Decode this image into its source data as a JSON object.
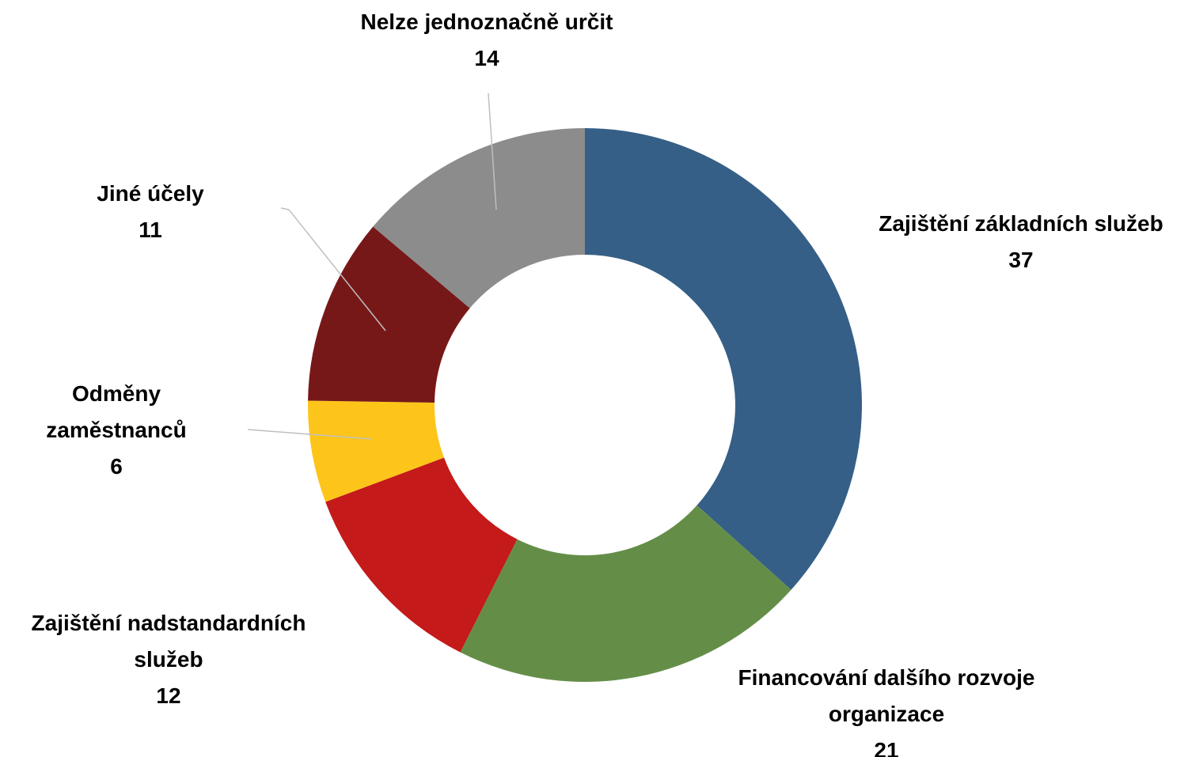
{
  "chart_data": {
    "type": "donut",
    "categories": [
      "Zajištění základních služeb",
      "Financování dalšího rozvoje organizace",
      "Zajištění nadstandardních služeb",
      "Odměny zaměstnanců",
      "Jiné účely",
      "Nelze jednoznačně určit"
    ],
    "values": [
      37,
      21,
      12,
      6,
      11,
      14
    ],
    "colors": [
      "#355f87",
      "#648e48",
      "#c41a1a",
      "#fdc51a",
      "#771818",
      "#8c8c8c"
    ]
  }
}
